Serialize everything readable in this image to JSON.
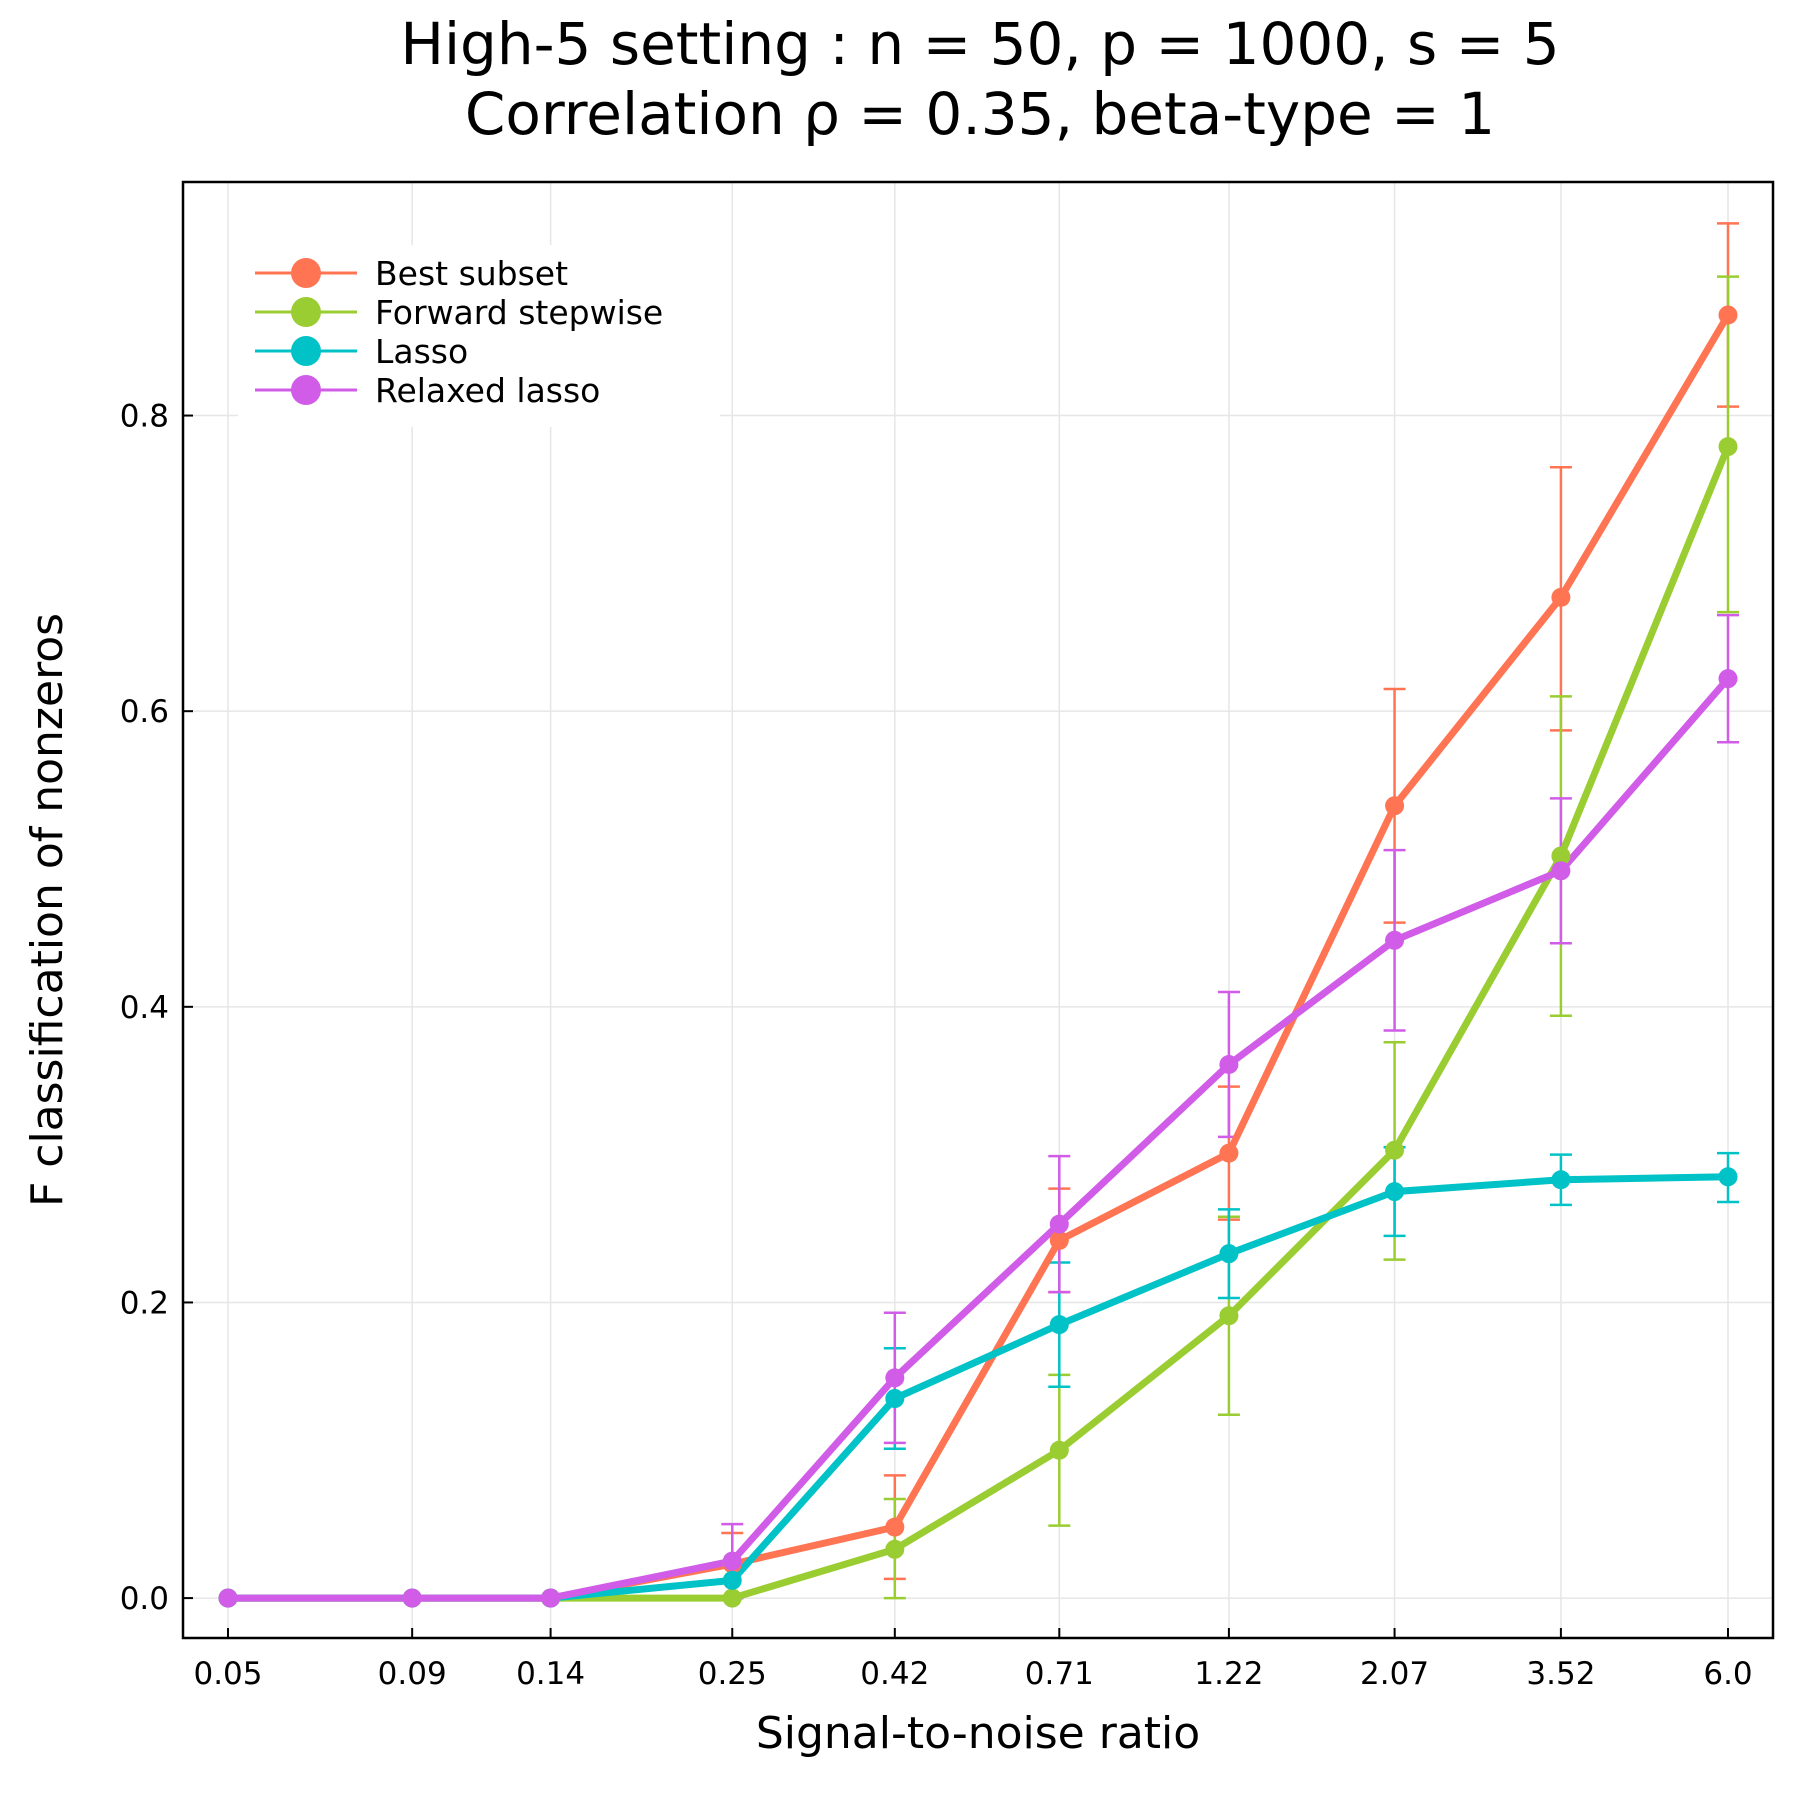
{
  "chart_data": {
    "type": "line",
    "title": "High-5 setting : n = 50, p = 1000, s = 5",
    "subtitle": "Correlation ρ = 0.35, beta-type = 1",
    "xlabel": "Signal-to-noise ratio",
    "ylabel": "F classification of nonzeros",
    "x_scale": "log",
    "x": [
      0.05,
      0.09,
      0.14,
      0.25,
      0.42,
      0.71,
      1.22,
      2.07,
      3.52,
      6.0
    ],
    "x_tick_labels": [
      "0.05",
      "0.09",
      "0.14",
      "0.25",
      "0.42",
      "0.71",
      "1.22",
      "2.07",
      "3.52",
      "6.0"
    ],
    "y_ticks": [
      0.0,
      0.2,
      0.4,
      0.6,
      0.8
    ],
    "y_tick_labels": [
      "0.0",
      "0.2",
      "0.4",
      "0.6",
      "0.8"
    ],
    "ylim": [
      -0.027,
      0.958
    ],
    "grid": true,
    "legend_position": "top-left",
    "series": [
      {
        "name": "Best subset",
        "color": "#ff7452",
        "values": [
          0.0,
          0.0,
          0.0,
          0.023,
          0.048,
          0.242,
          0.301,
          0.536,
          0.677,
          0.868
        ],
        "err_low": [
          0.0,
          0.0,
          0.0,
          0.0,
          0.013,
          0.207,
          0.256,
          0.457,
          0.587,
          0.806
        ],
        "err_high": [
          0.0,
          0.0,
          0.0,
          0.044,
          0.083,
          0.277,
          0.346,
          0.615,
          0.765,
          0.93
        ]
      },
      {
        "name": "Forward stepwise",
        "color": "#9acd32",
        "values": [
          0.0,
          0.0,
          0.0,
          0.0,
          0.033,
          0.1,
          0.191,
          0.303,
          0.502,
          0.779
        ],
        "err_low": [
          0.0,
          0.0,
          0.0,
          0.0,
          0.0,
          0.049,
          0.124,
          0.229,
          0.394,
          0.667
        ],
        "err_high": [
          0.0,
          0.0,
          0.0,
          0.0,
          0.067,
          0.151,
          0.258,
          0.376,
          0.61,
          0.894
        ]
      },
      {
        "name": "Lasso",
        "color": "#00c2c7",
        "values": [
          0.0,
          0.0,
          0.0,
          0.012,
          0.135,
          0.185,
          0.233,
          0.275,
          0.283,
          0.285
        ],
        "err_low": [
          0.0,
          0.0,
          0.0,
          0.0,
          0.101,
          0.143,
          0.203,
          0.245,
          0.266,
          0.268
        ],
        "err_high": [
          0.0,
          0.0,
          0.0,
          0.024,
          0.169,
          0.227,
          0.263,
          0.305,
          0.3,
          0.301
        ]
      },
      {
        "name": "Relaxed lasso",
        "color": "#d05ce8",
        "values": [
          0.0,
          0.0,
          0.0,
          0.025,
          0.149,
          0.253,
          0.361,
          0.445,
          0.492,
          0.622
        ],
        "err_low": [
          0.0,
          0.0,
          0.0,
          0.0,
          0.105,
          0.207,
          0.312,
          0.384,
          0.443,
          0.579
        ],
        "err_high": [
          0.0,
          0.0,
          0.0,
          0.05,
          0.193,
          0.299,
          0.41,
          0.506,
          0.541,
          0.665
        ]
      }
    ]
  }
}
